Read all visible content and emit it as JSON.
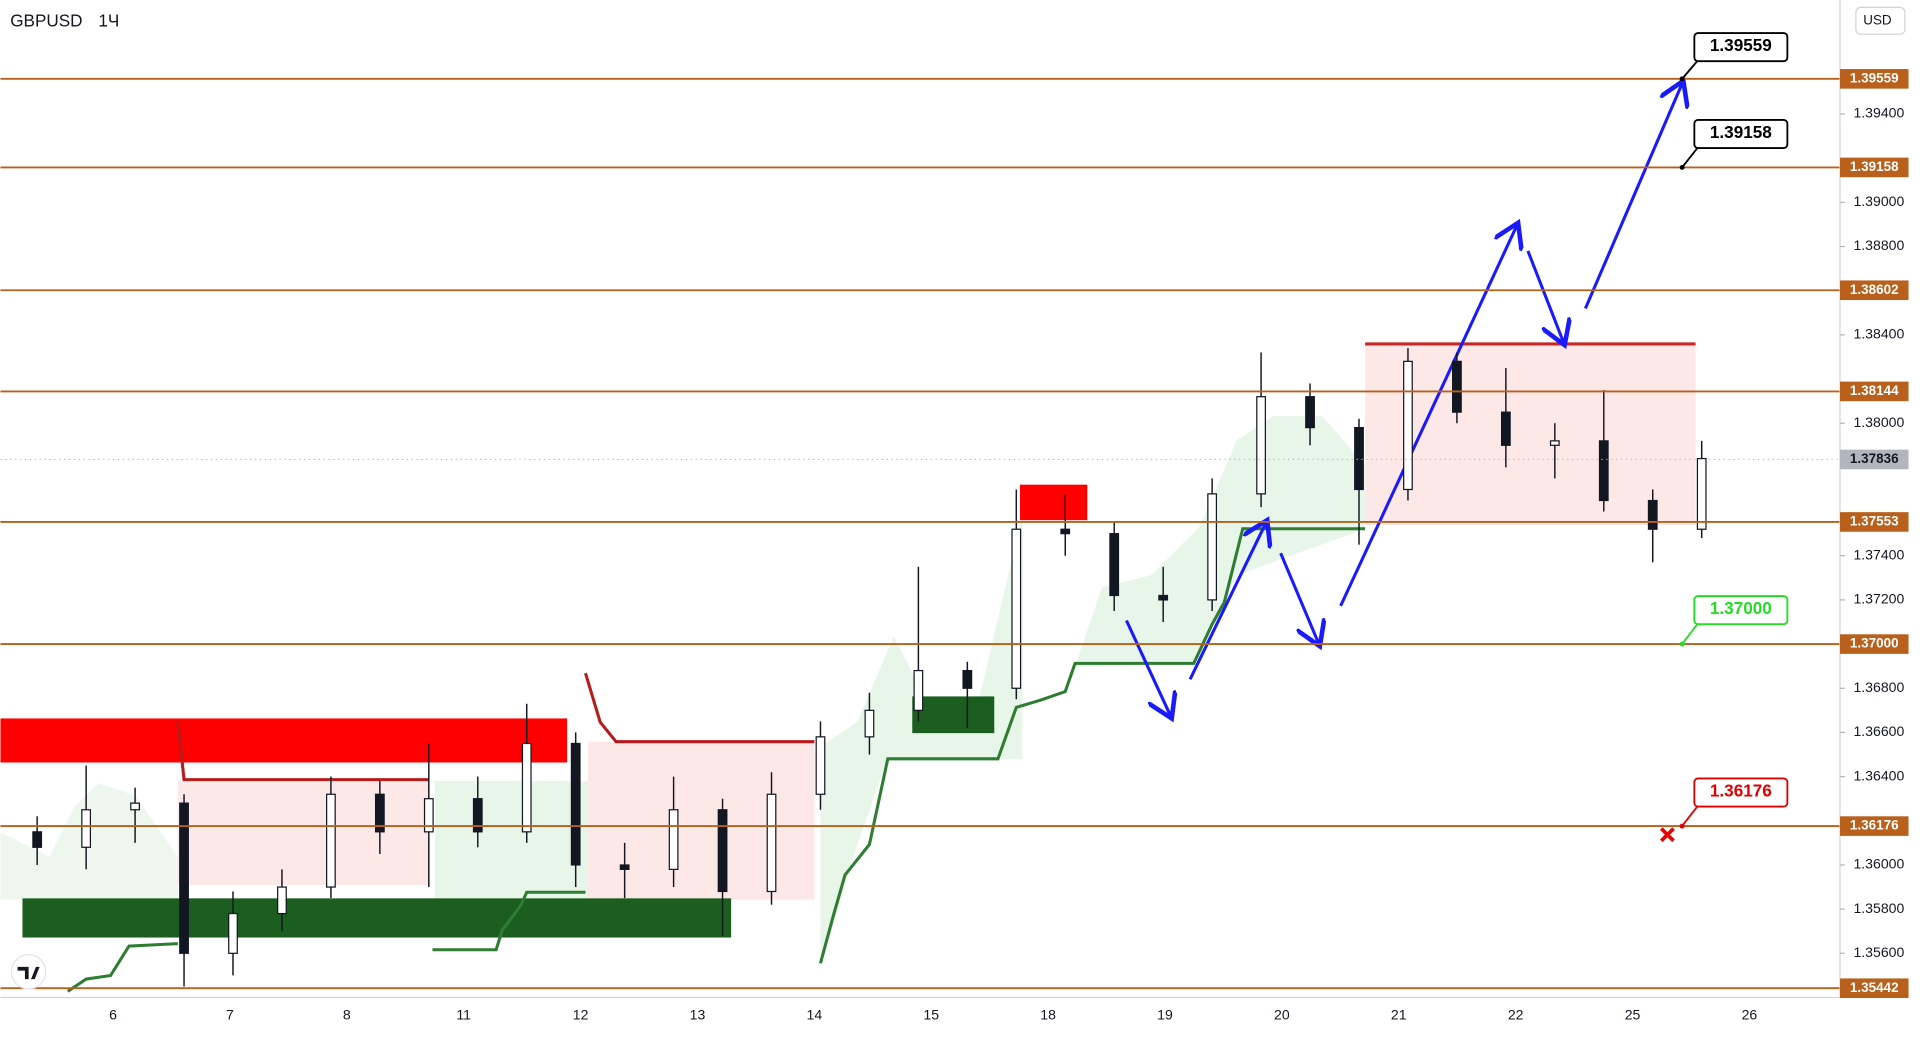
{
  "chart_data": {
    "type": "candlestick",
    "title": "GBPUSD",
    "interval": "1Ч",
    "currency": "USD",
    "x_labels": [
      "6",
      "7",
      "8",
      "11",
      "12",
      "13",
      "14",
      "15",
      "18",
      "19",
      "20",
      "21",
      "22",
      "25",
      "26"
    ],
    "candles": {
      "open": [
        1.3615,
        1.3608,
        1.3625,
        1.3628,
        1.356,
        1.3578,
        1.359,
        1.3632,
        1.3615,
        1.363,
        1.3615,
        1.3655,
        1.36,
        1.3598,
        1.3625,
        1.3588,
        1.3632,
        1.3658,
        1.367,
        1.3688,
        1.368,
        1.3752,
        1.375,
        1.3722,
        1.372,
        1.3768,
        1.3812,
        1.3798,
        1.377,
        1.3828,
        1.3805,
        1.379,
        1.3792,
        1.3765,
        1.3752
      ],
      "high": [
        1.3622,
        1.3645,
        1.3635,
        1.3632,
        1.3588,
        1.3598,
        1.364,
        1.3638,
        1.3655,
        1.364,
        1.3673,
        1.366,
        1.361,
        1.364,
        1.363,
        1.3642,
        1.3665,
        1.3678,
        1.3735,
        1.3692,
        1.377,
        1.3768,
        1.3755,
        1.3735,
        1.3775,
        1.3832,
        1.3818,
        1.3802,
        1.3834,
        1.3832,
        1.3825,
        1.38,
        1.3815,
        1.377,
        1.3792
      ],
      "low": [
        1.36,
        1.3598,
        1.361,
        1.3545,
        1.355,
        1.357,
        1.3585,
        1.3605,
        1.359,
        1.3608,
        1.361,
        1.359,
        1.3585,
        1.359,
        1.3568,
        1.3582,
        1.3625,
        1.365,
        1.3665,
        1.3662,
        1.3675,
        1.374,
        1.3715,
        1.371,
        1.3715,
        1.3762,
        1.379,
        1.3745,
        1.3765,
        1.38,
        1.378,
        1.3775,
        1.376,
        1.3737,
        1.3748
      ],
      "close": [
        1.3608,
        1.3625,
        1.3628,
        1.356,
        1.3578,
        1.359,
        1.3632,
        1.3615,
        1.363,
        1.3615,
        1.3655,
        1.36,
        1.3598,
        1.3625,
        1.3588,
        1.3632,
        1.3658,
        1.367,
        1.3688,
        1.368,
        1.3752,
        1.375,
        1.3722,
        1.372,
        1.3768,
        1.3812,
        1.3798,
        1.377,
        1.3828,
        1.3805,
        1.379,
        1.3792,
        1.3765,
        1.3752,
        1.3784
      ]
    },
    "color": "#131722",
    "ylim": [
      1.354,
      1.39916
    ],
    "yticks": [
      {
        "value": 1.356,
        "label": "1.35600"
      },
      {
        "value": 1.358,
        "label": "1.35800"
      },
      {
        "value": 1.36,
        "label": "1.36000"
      },
      {
        "value": 1.364,
        "label": "1.36400"
      },
      {
        "value": 1.366,
        "label": "1.36600"
      },
      {
        "value": 1.368,
        "label": "1.36800"
      },
      {
        "value": 1.372,
        "label": "1.37200"
      },
      {
        "value": 1.374,
        "label": "1.37400"
      },
      {
        "value": 1.38,
        "label": "1.38000"
      },
      {
        "value": 1.384,
        "label": "1.38400"
      },
      {
        "value": 1.388,
        "label": "1.38800"
      },
      {
        "value": 1.39,
        "label": "1.39000"
      },
      {
        "value": 1.394,
        "label": "1.39400"
      }
    ],
    "levels": [
      {
        "value": 1.39559,
        "label": "1.39559"
      },
      {
        "value": 1.39158,
        "label": "1.39158"
      },
      {
        "value": 1.38602,
        "label": "1.38602"
      },
      {
        "value": 1.38144,
        "label": "1.38144"
      },
      {
        "value": 1.37553,
        "label": "1.37553"
      },
      {
        "value": 1.37,
        "label": "1.37000"
      },
      {
        "value": 1.36176,
        "label": "1.36176"
      },
      {
        "value": 1.35442,
        "label": "1.35442"
      }
    ],
    "level_color": "#b8601c",
    "last_price": {
      "value": 1.37836,
      "label": "1.37836"
    }
  }
}
